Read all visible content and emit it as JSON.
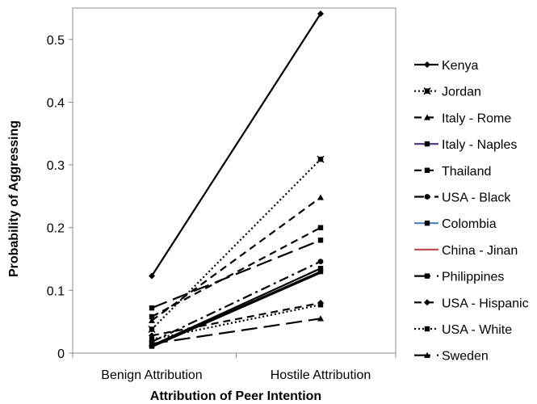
{
  "chart_data": {
    "type": "line",
    "xlabel": "Attribution of Peer Intention",
    "ylabel": "Probability of Aggressing",
    "categories": [
      "Benign Attribution",
      "Hostile Attribution"
    ],
    "ylim": [
      0,
      0.55
    ],
    "yticks": [
      0,
      0.1,
      0.2,
      0.3,
      0.4,
      0.5
    ],
    "ytick_labels": [
      "0",
      "0.1",
      "0.2",
      "0.3",
      "0.4",
      "0.5"
    ],
    "grid": false,
    "legend_position": "right",
    "series": [
      {
        "name": "Kenya",
        "values": [
          0.123,
          0.541
        ],
        "dash": "solid",
        "marker": "diamond",
        "color": "#000000"
      },
      {
        "name": "Jordan",
        "values": [
          0.038,
          0.309
        ],
        "dash": "dotted",
        "marker": "x-square",
        "color": "#000000"
      },
      {
        "name": "Italy - Rome",
        "values": [
          0.052,
          0.248
        ],
        "dash": "dashed",
        "marker": "triangle",
        "color": "#000000"
      },
      {
        "name": "Italy - Naples",
        "values": [
          0.012,
          0.135
        ],
        "dash": "solid",
        "marker": "square",
        "color": "#000000"
      },
      {
        "name": "Thailand",
        "values": [
          0.058,
          0.2
        ],
        "dash": "dashed",
        "marker": "square",
        "color": "#000000"
      },
      {
        "name": "USA - Black",
        "values": [
          0.018,
          0.146
        ],
        "dash": "dashdot",
        "marker": "circle",
        "color": "#000000"
      },
      {
        "name": "Colombia",
        "values": [
          0.011,
          0.13
        ],
        "dash": "solid",
        "marker": "square",
        "color": "#000000"
      },
      {
        "name": "China - Jinan",
        "values": [
          0.01,
          0.128
        ],
        "dash": "solid",
        "marker": "none",
        "color": "#000000"
      },
      {
        "name": "Philippines",
        "values": [
          0.072,
          0.18
        ],
        "dash": "longdash",
        "marker": "square",
        "color": "#000000"
      },
      {
        "name": "USA - Hispanic",
        "values": [
          0.028,
          0.08
        ],
        "dash": "dashed",
        "marker": "diamond",
        "color": "#000000"
      },
      {
        "name": "USA - White",
        "values": [
          0.022,
          0.077
        ],
        "dash": "dotted",
        "marker": "square",
        "color": "#000000"
      },
      {
        "name": "Sweden",
        "values": [
          0.015,
          0.055
        ],
        "dash": "longdash",
        "marker": "triangle",
        "color": "#000000"
      }
    ]
  },
  "legend_swatch_colors": {
    "Italy - Naples": "#5b3f86",
    "Colombia": "#4f81bd",
    "China - Jinan": "#c0504d"
  }
}
